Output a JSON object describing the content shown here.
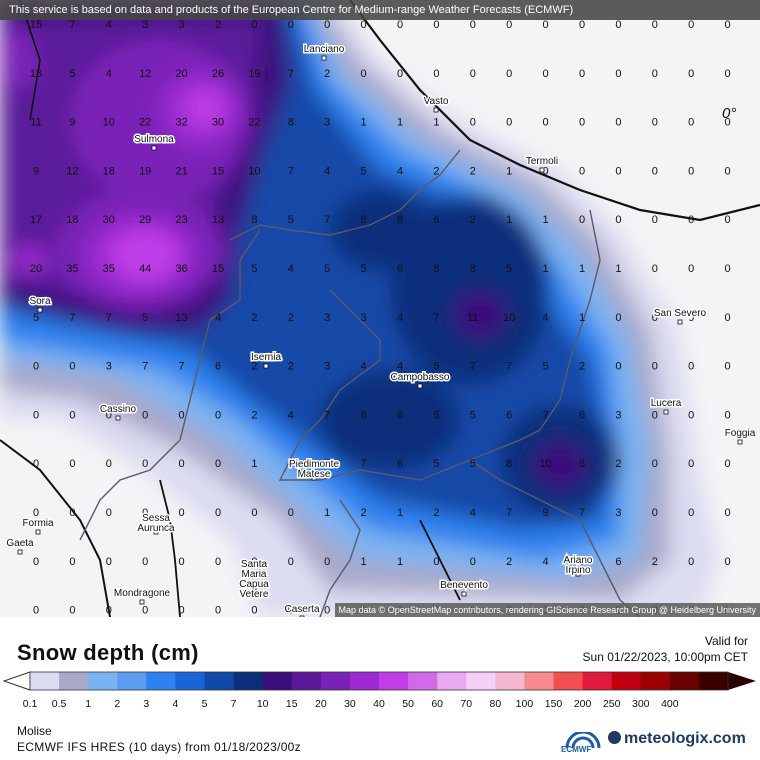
{
  "attribution_top": "This service is based on data and products of the European Centre for Medium-range Weather Forecasts (ECMWF)",
  "attribution_bottom": "Map data © OpenStreetMap contributors, rendering GIScience Research Group @ Heidelberg University",
  "title": "Snow depth (cm)",
  "valid_label": "Valid for",
  "valid_date": "Sun 01/22/2023, 10:00pm CET",
  "region": "Molise",
  "model": "ECMWF IFS HRES (10 days) from 01/18/2023/00z",
  "ecmwf_logo_text": "ECMWF",
  "brand": "meteologix.com",
  "colorbar": {
    "labels": [
      "0.1",
      "0.5",
      "1",
      "2",
      "3",
      "4",
      "5",
      "7",
      "10",
      "15",
      "20",
      "30",
      "40",
      "50",
      "60",
      "70",
      "80",
      "100",
      "150",
      "200",
      "250",
      "300",
      "400"
    ],
    "colors": [
      "#dcdcf2",
      "#a9a9c9",
      "#7bb3f2",
      "#5a9cf0",
      "#2f81ef",
      "#1a64d8",
      "#1249a8",
      "#0a2e7a",
      "#3a0f7c",
      "#5a1a9a",
      "#7a22b8",
      "#9b2ad0",
      "#c03de8",
      "#d26ae8",
      "#e8a8f2",
      "#f4d0f8",
      "#f6b8d0",
      "#f68a90",
      "#f25050",
      "#e01a3a",
      "#c00010",
      "#9a0000",
      "#6a0000",
      "#3a0000"
    ]
  },
  "cities": [
    {
      "name": "Lanciano"
    },
    {
      "name": "Vasto"
    },
    {
      "name": "Termoli"
    },
    {
      "name": "Sulmona"
    },
    {
      "name": "San Severo"
    },
    {
      "name": "Sora"
    },
    {
      "name": "Isernia"
    },
    {
      "name": "Campobasso"
    },
    {
      "name": "Lucera"
    },
    {
      "name": "Foggia"
    },
    {
      "name": "Cassino"
    },
    {
      "name": "Piedimonte Matese"
    },
    {
      "name": "Formia"
    },
    {
      "name": "Gaeta"
    },
    {
      "name": "Sessa Aurunca"
    },
    {
      "name": "Ariano Irpino"
    },
    {
      "name": "Mondragone"
    },
    {
      "name": "Santa Maria Capua Vetere"
    },
    {
      "name": "Caserta"
    },
    {
      "name": "Benevento"
    }
  ],
  "grid_values": [
    [
      "15",
      "7",
      "4",
      "3",
      "3",
      "2",
      "0",
      "0",
      "0",
      "0",
      "0",
      "0",
      "0",
      "0",
      "0",
      "0",
      "0",
      "0",
      "0",
      "0",
      "0",
      "0"
    ],
    [
      "18",
      "5",
      "4",
      "12",
      "20",
      "26",
      "19",
      "7",
      "2",
      "0",
      "0",
      "0",
      "0",
      "0",
      "0",
      "0",
      "0",
      "0",
      "0",
      "0",
      "0",
      "0"
    ],
    [
      "11",
      "9",
      "10",
      "22",
      "32",
      "30",
      "22",
      "8",
      "3",
      "1",
      "1",
      "1",
      "0",
      "0",
      "0",
      "0",
      "0",
      "0",
      "0",
      "0",
      "0",
      "0"
    ],
    [
      "9",
      "12",
      "18",
      "19",
      "21",
      "15",
      "10",
      "7",
      "4",
      "5",
      "4",
      "2",
      "2",
      "1",
      "0",
      "0",
      "0",
      "0",
      "0",
      "0",
      "0",
      "0"
    ],
    [
      "17",
      "18",
      "30",
      "29",
      "23",
      "13",
      "8",
      "5",
      "7",
      "8",
      "8",
      "6",
      "2",
      "1",
      "1",
      "0",
      "0",
      "0",
      "0",
      "0",
      "0",
      "0"
    ],
    [
      "20",
      "35",
      "35",
      "44",
      "36",
      "15",
      "5",
      "4",
      "5",
      "5",
      "6",
      "8",
      "8",
      "5",
      "1",
      "1",
      "1",
      "0",
      "0",
      "0",
      "0",
      "0"
    ],
    [
      "5",
      "7",
      "7",
      "5",
      "13",
      "4",
      "2",
      "2",
      "3",
      "3",
      "4",
      "7",
      "11",
      "10",
      "4",
      "1",
      "0",
      "0",
      "0",
      "0",
      "0",
      "0"
    ],
    [
      "0",
      "0",
      "3",
      "7",
      "7",
      "6",
      "2",
      "2",
      "3",
      "4",
      "4",
      "5",
      "7",
      "7",
      "5",
      "2",
      "0",
      "0",
      "0",
      "0",
      "0",
      "0"
    ],
    [
      "0",
      "0",
      "0",
      "0",
      "0",
      "0",
      "2",
      "4",
      "7",
      "8",
      "6",
      "5",
      "5",
      "6",
      "7",
      "6",
      "3",
      "0",
      "0",
      "0",
      "0",
      "0"
    ],
    [
      "0",
      "0",
      "0",
      "0",
      "0",
      "0",
      "1",
      "4",
      "5",
      "7",
      "6",
      "5",
      "5",
      "8",
      "10",
      "6",
      "2",
      "0",
      "0",
      "0",
      "0",
      "0"
    ],
    [
      "0",
      "0",
      "0",
      "0",
      "0",
      "0",
      "0",
      "0",
      "1",
      "2",
      "1",
      "2",
      "4",
      "7",
      "9",
      "7",
      "3",
      "0",
      "0",
      "0",
      "0",
      "0"
    ],
    [
      "0",
      "0",
      "0",
      "0",
      "0",
      "0",
      "0",
      "0",
      "0",
      "1",
      "1",
      "0",
      "0",
      "2",
      "4",
      "6",
      "6",
      "2",
      "0",
      "0",
      "0",
      "0"
    ],
    [
      "0",
      "0",
      "0",
      "0",
      "0",
      "0",
      "0",
      "0",
      "0",
      "0",
      "0",
      "0",
      "0",
      "0",
      "0",
      "0",
      "0",
      "0",
      "0",
      "0",
      "0",
      "0"
    ]
  ],
  "map_note": "0°"
}
